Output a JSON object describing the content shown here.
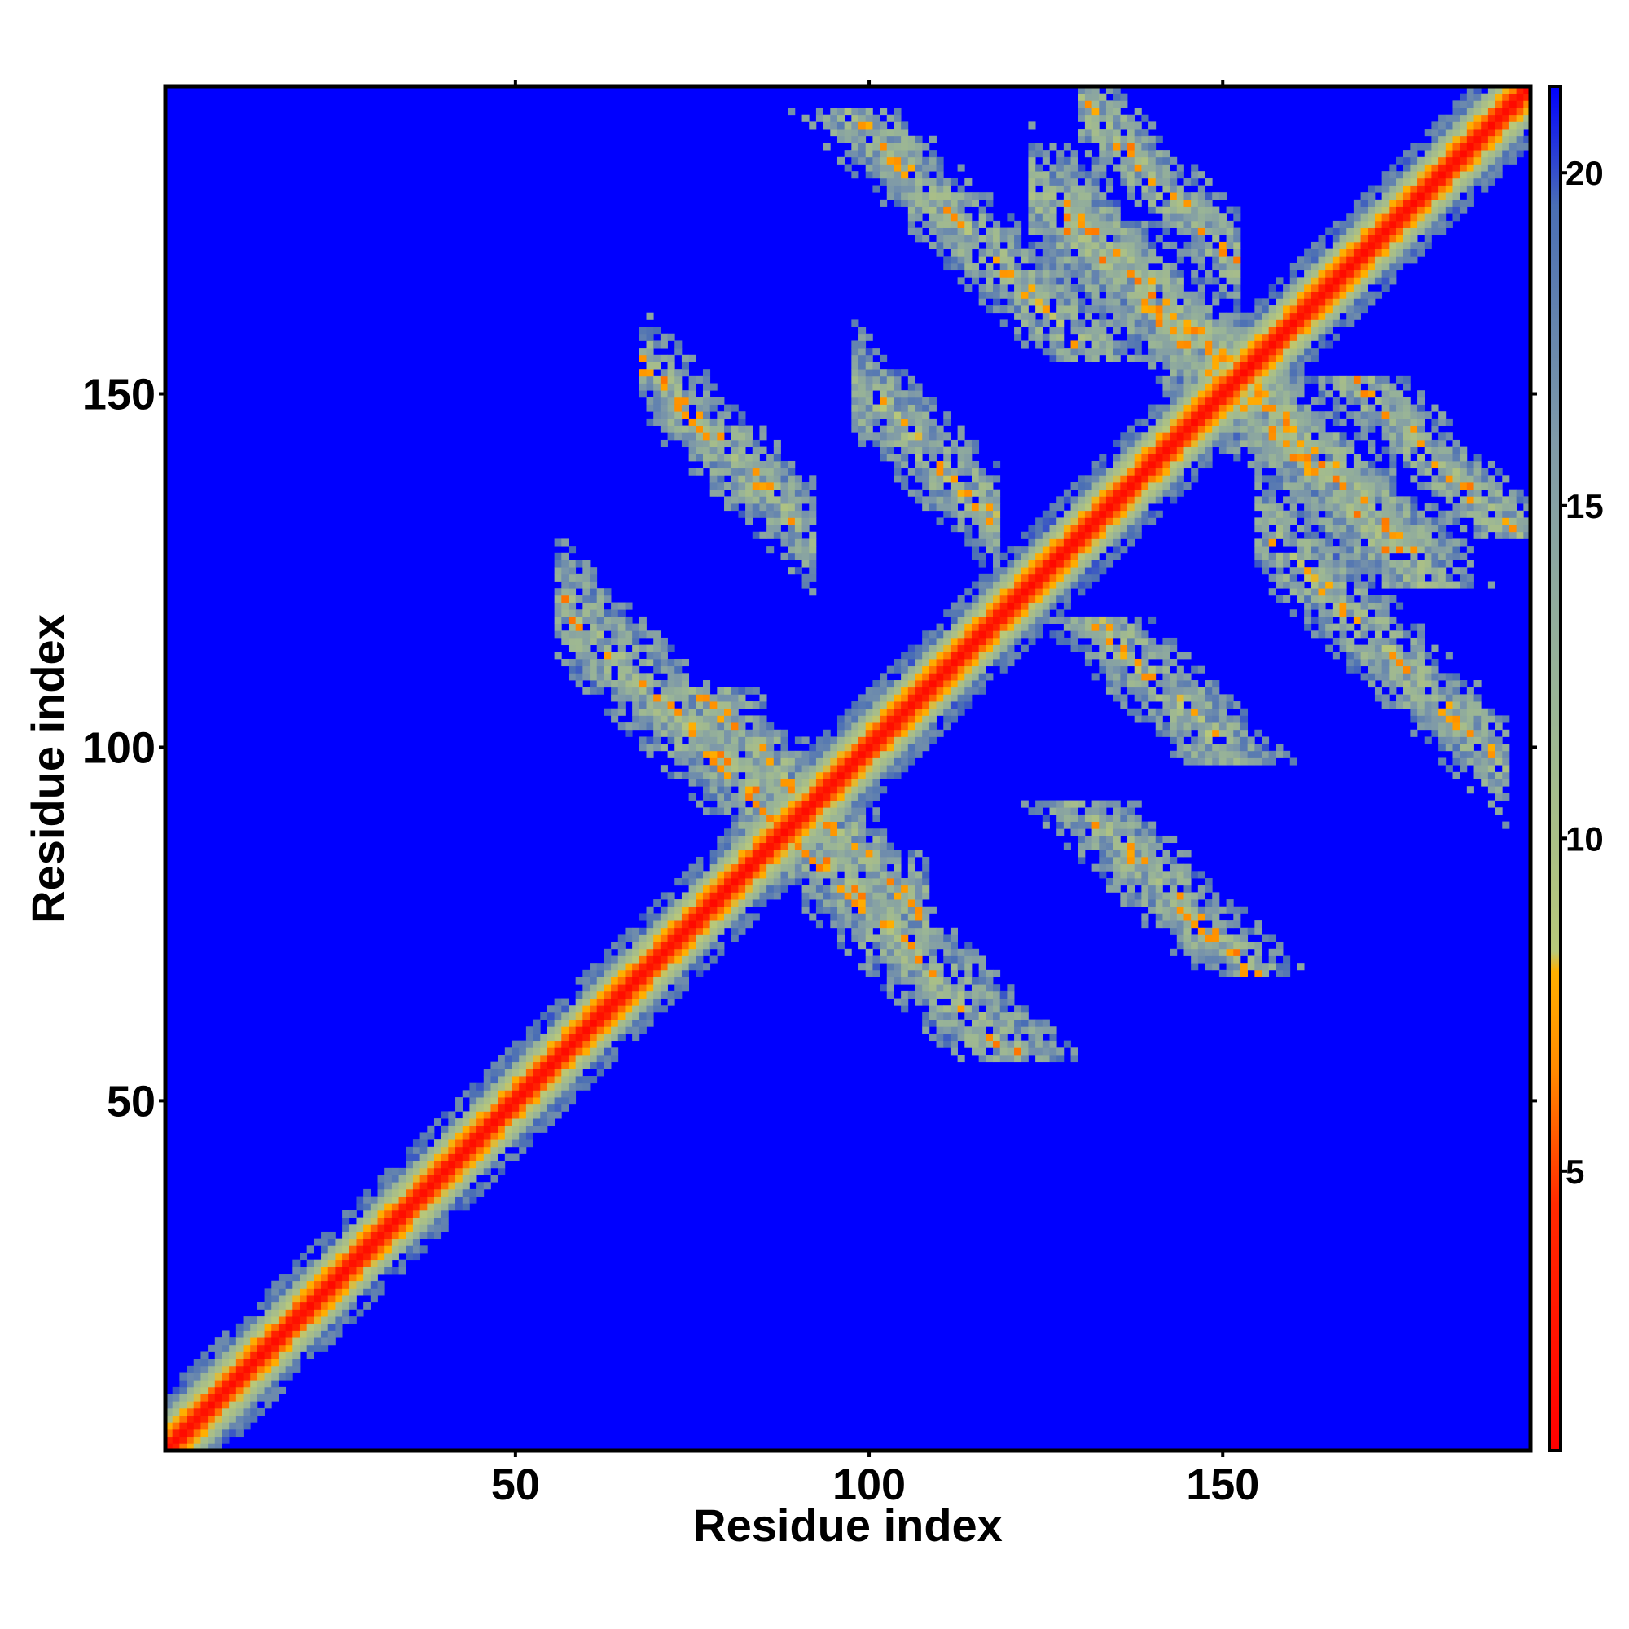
{
  "chart_data": {
    "type": "heatmap",
    "title": "",
    "xlabel": "Residue index",
    "ylabel": "Residue index",
    "x_range": [
      1,
      193
    ],
    "y_range": [
      1,
      193
    ],
    "x_ticks": [
      50,
      100,
      150
    ],
    "y_ticks": [
      50,
      100,
      150
    ],
    "grid": false,
    "colorbar": {
      "position": "right",
      "range": [
        0.8,
        21.3
      ],
      "ticks": [
        5,
        10,
        15,
        20
      ],
      "stops": [
        {
          "value": 0.8,
          "color": "#ff0000"
        },
        {
          "value": 4.5,
          "color": "#ff2a00"
        },
        {
          "value": 6.5,
          "color": "#ff8a00"
        },
        {
          "value": 8.0,
          "color": "#ffb000"
        },
        {
          "value": 8.3,
          "color": "#b8c87a"
        },
        {
          "value": 12.0,
          "color": "#9ab596"
        },
        {
          "value": 16.0,
          "color": "#7f9aa8"
        },
        {
          "value": 19.5,
          "color": "#4a6eb5"
        },
        {
          "value": 21.3,
          "color": "#0000ff"
        }
      ]
    },
    "background_value": 21.3,
    "structure": {
      "description_of_bands": "contact map (distance matrix), diagonal band plus off-diagonal antiparallel strand contacts",
      "diagonal": {
        "from": 1,
        "to": 193,
        "core_value": 1.5,
        "halfwidth": 5
      },
      "antiparallel_bands": [
        {
          "i_range": [
            56,
            88
          ],
          "j_sum": 177,
          "halfwidth": 6,
          "min_value": 6.0
        },
        {
          "i_range": [
            92,
            108
          ],
          "j_sum": 184,
          "halfwidth": 5,
          "min_value": 6.0
        },
        {
          "i_range": [
            68,
            92
          ],
          "j_sum": 222,
          "halfwidth": 5,
          "min_value": 6.0
        },
        {
          "i_range": [
            98,
            118
          ],
          "j_sum": 250,
          "halfwidth": 5,
          "min_value": 6.5
        },
        {
          "i_range": [
            128,
            160
          ],
          "j_sum": 305,
          "halfwidth": 5,
          "min_value": 6.0
        },
        {
          "i_range": [
            155,
            190
          ],
          "j_sum": 287,
          "halfwidth": 5,
          "min_value": 6.5
        },
        {
          "i_range": [
            123,
            150
          ],
          "j_sum": 302,
          "halfwidth": 6,
          "min_value": 6.0
        },
        {
          "i_range": [
            130,
            152
          ],
          "j_sum": 321,
          "halfwidth": 4,
          "min_value": 6.0
        }
      ]
    }
  }
}
